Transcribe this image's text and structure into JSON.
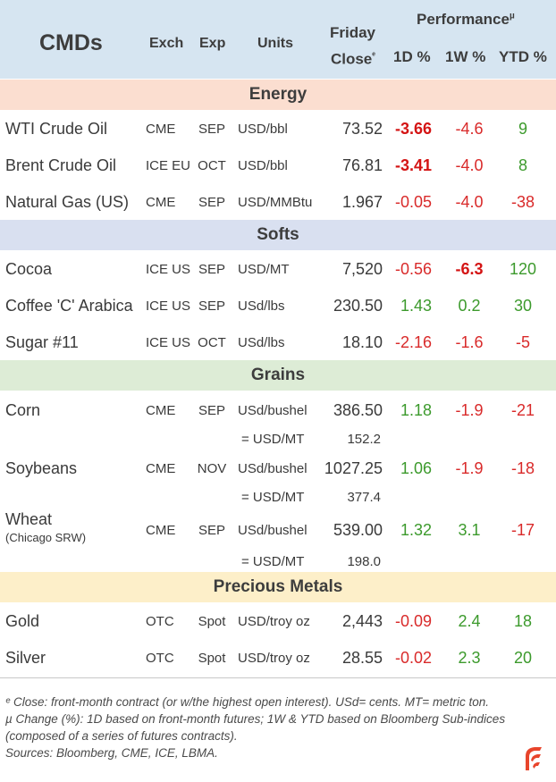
{
  "header": {
    "title": "CMDs",
    "col_exch": "Exch",
    "col_exp": "Exp",
    "col_units": "Units",
    "col_close_line1": "Friday",
    "col_close_line2": "Close",
    "close_marker": "ᵉ",
    "performance": "Performance",
    "performance_marker": "µ",
    "col_1d": "1D %",
    "col_1w": "1W %",
    "col_ytd": "YTD %"
  },
  "sections": {
    "energy": "Energy",
    "softs": "Softs",
    "grains": "Grains",
    "metals": "Precious Metals"
  },
  "rows": {
    "wti": {
      "name": "WTI Crude Oil",
      "exch": "CME",
      "exp": "SEP",
      "units": "USD/bbl",
      "close": "73.52",
      "d1": "-3.66",
      "w1": "-4.6",
      "ytd": "9"
    },
    "brent": {
      "name": "Brent Crude Oil",
      "exch": "ICE EU",
      "exp": "OCT",
      "units": "USD/bbl",
      "close": "76.81",
      "d1": "-3.41",
      "w1": "-4.0",
      "ytd": "8"
    },
    "natgas": {
      "name": "Natural Gas (US)",
      "exch": "CME",
      "exp": "SEP",
      "units": "USD/MMBtu",
      "close": "1.967",
      "d1": "-0.05",
      "w1": "-4.0",
      "ytd": "-38"
    },
    "cocoa": {
      "name": "Cocoa",
      "exch": "ICE US",
      "exp": "SEP",
      "units": "USD/MT",
      "close": "7,520",
      "d1": "-0.56",
      "w1": "-6.3",
      "ytd": "120"
    },
    "coffee": {
      "name": "Coffee 'C' Arabica",
      "exch": "ICE US",
      "exp": "SEP",
      "units": "USd/lbs",
      "close": "230.50",
      "d1": "1.43",
      "w1": "0.2",
      "ytd": "30"
    },
    "sugar": {
      "name": "Sugar #11",
      "exch": "ICE US",
      "exp": "OCT",
      "units": "USd/lbs",
      "close": "18.10",
      "d1": "-2.16",
      "w1": "-1.6",
      "ytd": "-5"
    },
    "corn": {
      "name": "Corn",
      "exch": "CME",
      "exp": "SEP",
      "units": "USd/bushel",
      "close": "386.50",
      "d1": "1.18",
      "w1": "-1.9",
      "ytd": "-21",
      "conv_units": "= USD/MT",
      "conv_val": "152.2"
    },
    "soybeans": {
      "name": "Soybeans",
      "exch": "CME",
      "exp": "NOV",
      "units": "USd/bushel",
      "close": "1027.25",
      "d1": "1.06",
      "w1": "-1.9",
      "ytd": "-18",
      "conv_units": "= USD/MT",
      "conv_val": "377.4"
    },
    "wheat": {
      "name": "Wheat",
      "sub": "(Chicago SRW)",
      "exch": "CME",
      "exp": "SEP",
      "units": "USd/bushel",
      "close": "539.00",
      "d1": "1.32",
      "w1": "3.1",
      "ytd": "-17",
      "conv_units": "= USD/MT",
      "conv_val": "198.0"
    },
    "gold": {
      "name": "Gold",
      "exch": "OTC",
      "exp": "Spot",
      "units": "USD/troy oz",
      "close": "2,443",
      "d1": "-0.09",
      "w1": "2.4",
      "ytd": "18"
    },
    "silver": {
      "name": "Silver",
      "exch": "OTC",
      "exp": "Spot",
      "units": "USD/troy oz",
      "close": "28.55",
      "d1": "-0.02",
      "w1": "2.3",
      "ytd": "20"
    }
  },
  "notes": {
    "line1": "ᵉ Close: front-month contract (or w/the highest open interest). USd= cents. MT= metric ton.",
    "line2": "µ Change (%): 1D based on front-month futures; 1W & YTD based on Bloomberg Sub-indices",
    "line3": "(composed of a series of futures contracts).",
    "line4": "Sources: Bloomberg, CME, ICE, LBMA."
  },
  "colors": {
    "header_bg": "#d6e5f1",
    "energy_bg": "#fbded0",
    "softs_bg": "#d9e0f0",
    "grains_bg": "#ddecd6",
    "metals_bg": "#fdefc9",
    "negative": "#d92a2a",
    "positive": "#3c9a2c",
    "logo": "#e8452c"
  },
  "icons": {
    "logo": "brand-logo-icon"
  }
}
